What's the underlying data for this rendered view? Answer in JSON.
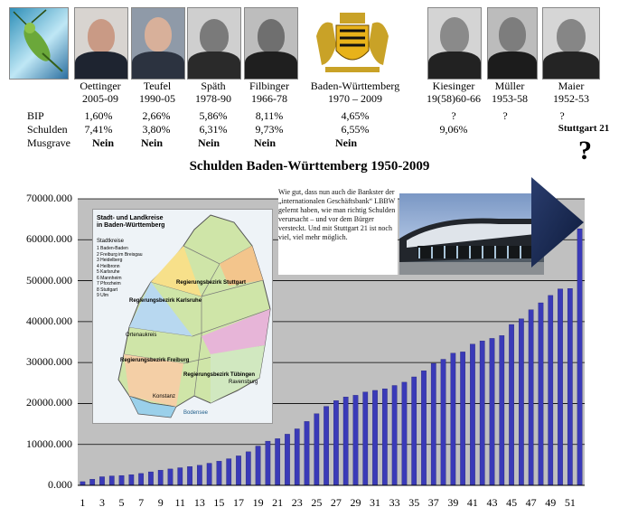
{
  "header": {
    "columns": [
      {
        "name": "Oettinger",
        "years": "2005-09",
        "bip": "1,60%",
        "schulden": "7,41%",
        "musgrave": "Nein"
      },
      {
        "name": "Teufel",
        "years": "1990-05",
        "bip": "2,66%",
        "schulden": "3,80%",
        "musgrave": "Nein"
      },
      {
        "name": "Späth",
        "years": "1978-90",
        "bip": "5,86%",
        "schulden": "6,31%",
        "musgrave": "Nein"
      },
      {
        "name": "Filbinger",
        "years": "1966-78",
        "bip": "8,11%",
        "schulden": "9,73%",
        "musgrave": "Nein"
      },
      {
        "name": "Baden-Württemberg",
        "years": "1970 – 2009",
        "bip": "4,65%",
        "schulden": "6,55%",
        "musgrave": "Nein"
      },
      {
        "name": "Kiesinger",
        "years": "19(58)60-66",
        "bip": "?",
        "schulden": "9,06%",
        "musgrave": ""
      },
      {
        "name": "Müller",
        "years": "1953-58",
        "bip": "?",
        "schulden": "",
        "musgrave": ""
      },
      {
        "name": "Maier",
        "years": "1952-53",
        "bip": "?",
        "schulden": "",
        "musgrave": "Stuttgart 21"
      }
    ],
    "row_labels": {
      "bip": "BIP",
      "schulden": "Schulden",
      "musgrave": "Musgrave"
    }
  },
  "question_mark": "?",
  "annotation": "Wie gut, dass nun auch die Bankster der „internationalen Geschäftsbank“ LBBW gelernt haben, wie man richtig Schulden verursacht – und vor dem Bürger versteckt. Und mit Stuttgart 21 ist noch viel, viel mehr möglich.",
  "map": {
    "title": "Stadt- und Landkreise in Baden-Württemberg",
    "legend_title": "Stadtkreise",
    "legend_items": [
      "1 Baden-Baden",
      "2 Freiburg im Breisgau",
      "3 Heidelberg",
      "4 Heilbronn",
      "5 Karlsruhe",
      "6 Mannheim",
      "7 Pforzheim",
      "8 Stuttgart",
      "9 Ulm"
    ],
    "labels": [
      "Regierungsbezirk Stuttgart",
      "Regierungsbezirk Karlsruhe",
      "Regierungsbezirk Tübingen",
      "Regierungsbezirk Freiburg",
      "Ortenaukreis",
      "Ravensburg",
      "Konstanz",
      "Bodensee"
    ]
  },
  "chart_data": {
    "type": "bar",
    "title": "Schulden Baden-Württemberg 1950-2009",
    "xlabel": "",
    "ylabel": "",
    "ylim": [
      0,
      70000
    ],
    "ytick_labels": [
      "0.000",
      "10000.000",
      "20000.000",
      "30000.000",
      "40000.000",
      "50000.000",
      "60000.000",
      "70000.000"
    ],
    "categories": [
      1,
      2,
      3,
      4,
      5,
      6,
      7,
      8,
      9,
      10,
      11,
      12,
      13,
      14,
      15,
      16,
      17,
      18,
      19,
      20,
      21,
      22,
      23,
      24,
      25,
      26,
      27,
      28,
      29,
      30,
      31,
      32,
      33,
      34,
      35,
      36,
      37,
      38,
      39,
      40,
      41,
      42,
      43,
      44,
      45,
      46,
      47,
      48,
      49,
      50,
      51,
      52
    ],
    "xtick_labels": [
      "1",
      "3",
      "5",
      "7",
      "9",
      "11",
      "13",
      "15",
      "17",
      "19",
      "21",
      "23",
      "25",
      "27",
      "29",
      "31",
      "33",
      "35",
      "37",
      "39",
      "41",
      "43",
      "45",
      "47",
      "49",
      "51"
    ],
    "values": [
      900,
      1500,
      2100,
      2300,
      2400,
      2600,
      2900,
      3300,
      3700,
      4000,
      4300,
      4600,
      4900,
      5400,
      5900,
      6500,
      7200,
      8200,
      9600,
      10800,
      11400,
      12500,
      13800,
      15600,
      17500,
      19300,
      20700,
      21600,
      22000,
      22800,
      23200,
      23600,
      24400,
      25200,
      26500,
      28000,
      29800,
      30800,
      32300,
      32600,
      34500,
      35300,
      35900,
      36600,
      39300,
      40700,
      42900,
      44600,
      46400,
      48000,
      48100,
      62700
    ],
    "grid": true,
    "color": "#3a3ab8"
  }
}
